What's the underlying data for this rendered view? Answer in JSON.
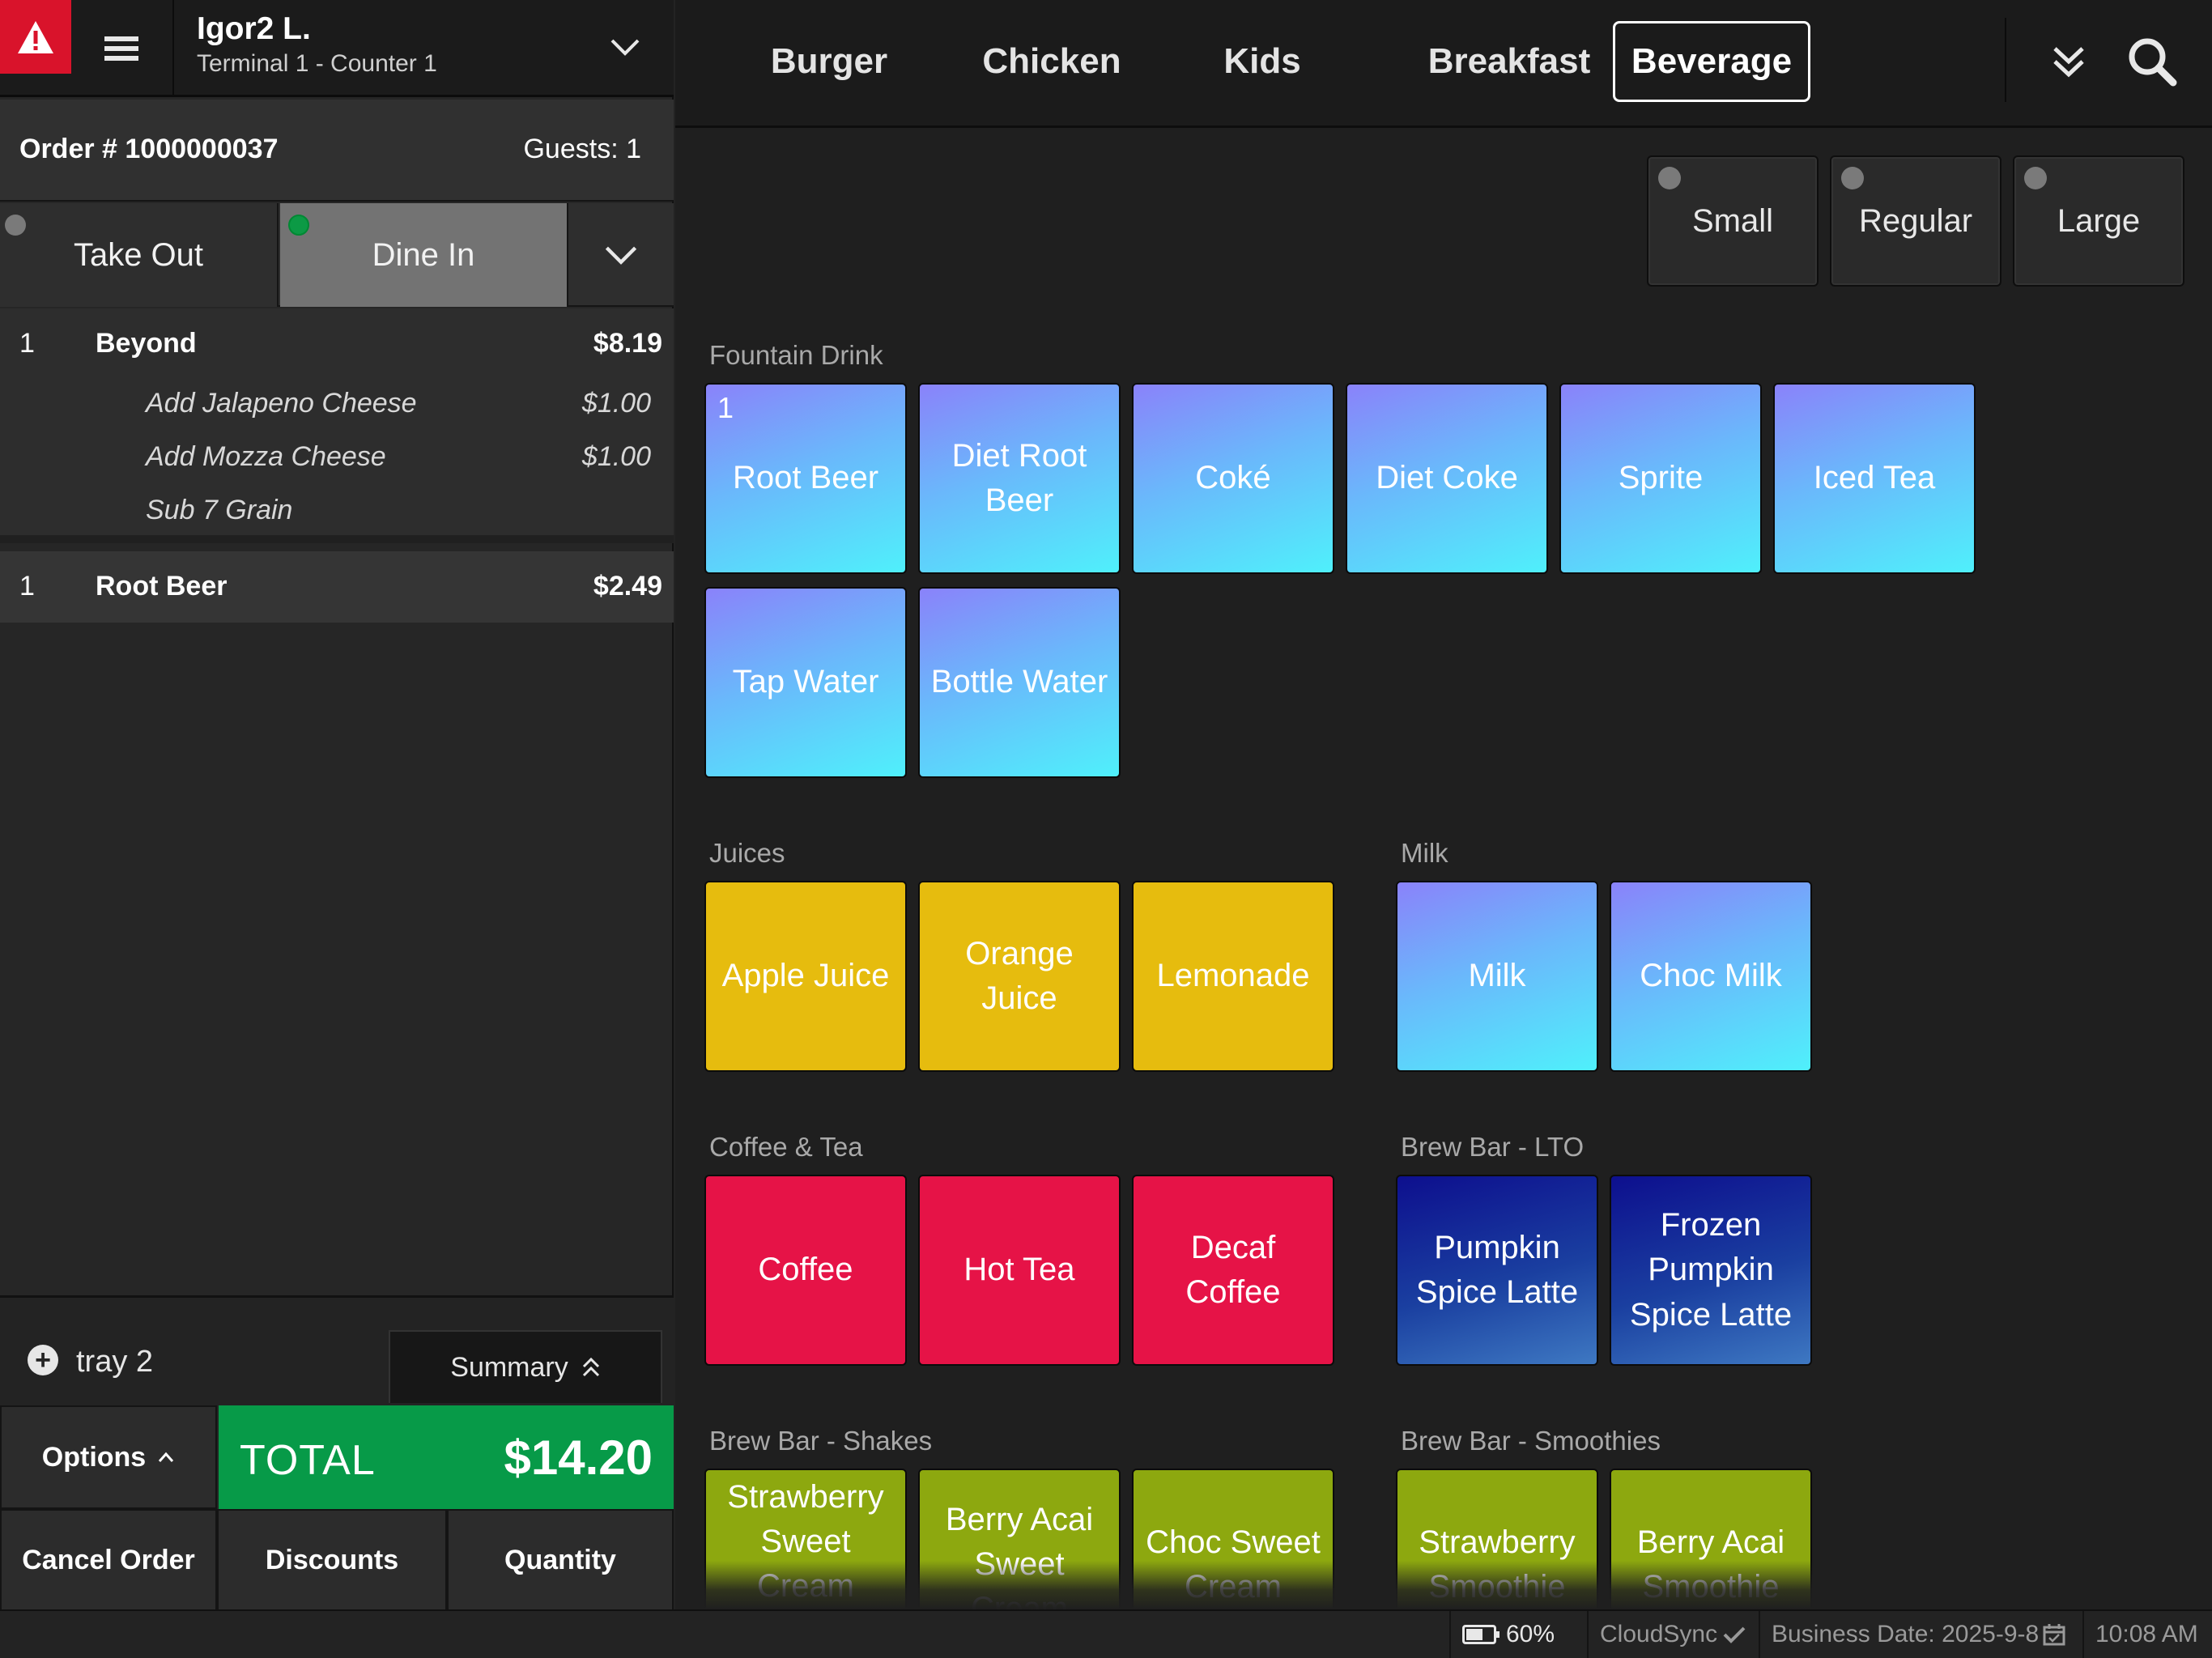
{
  "header": {
    "user_name": "Igor2 L.",
    "terminal": "Terminal 1 - Counter 1"
  },
  "order": {
    "number_label": "Order # 1000000037",
    "guests_label": "Guests: 1",
    "order_types": [
      "Take Out",
      "Dine In"
    ],
    "selected_type": "Dine In",
    "items": [
      {
        "qty": "1",
        "name": "Beyond",
        "price": "$8.19",
        "modifiers": [
          {
            "name": "Add Jalapeno Cheese",
            "price": "$1.00"
          },
          {
            "name": "Add Mozza Cheese",
            "price": "$1.00"
          },
          {
            "name": "Sub 7 Grain",
            "price": ""
          }
        ]
      },
      {
        "qty": "1",
        "name": "Root Beer",
        "price": "$2.49",
        "modifiers": []
      }
    ],
    "tray_label": "tray 2",
    "summary_label": "Summary",
    "options_label": "Options",
    "total_label": "TOTAL",
    "total_value": "$14.20",
    "cancel_label": "Cancel Order",
    "discounts_label": "Discounts",
    "quantity_label": "Quantity"
  },
  "nav": {
    "tabs": [
      "Burger",
      "Chicken",
      "Kids",
      "Breakfast",
      "Beverage"
    ],
    "active_tab": "Beverage"
  },
  "sizes": [
    "Small",
    "Regular",
    "Large"
  ],
  "menu": {
    "fountain": {
      "label": "Fountain Drink",
      "items": [
        "Root Beer",
        "Diet Root Beer",
        "Coké",
        "Diet Coke",
        "Sprite",
        "Iced Tea",
        "Tap Water",
        "Bottle Water"
      ],
      "root_beer_count": "1"
    },
    "juices": {
      "label": "Juices",
      "items": [
        "Apple Juice",
        "Orange Juice",
        "Lemonade"
      ]
    },
    "milk": {
      "label": "Milk",
      "items": [
        "Milk",
        "Choc Milk"
      ]
    },
    "coffee_tea": {
      "label": "Coffee & Tea",
      "items": [
        "Coffee",
        "Hot Tea",
        "Decaf Coffee"
      ]
    },
    "brew_lto": {
      "label": "Brew Bar - LTO",
      "items": [
        "Pumpkin Spice Latte",
        "Frozen Pumpkin Spice Latte"
      ]
    },
    "brew_shakes": {
      "label": "Brew Bar - Shakes",
      "items": [
        "Strawberry Sweet Cream",
        "Berry Acai Sweet Cream",
        "Choc Sweet Cream"
      ]
    },
    "brew_smoothies": {
      "label": "Brew Bar - Smoothies",
      "items": [
        "Strawberry Smoothie",
        "Berry Acai Smoothie"
      ]
    }
  },
  "tile_colors": {
    "fountain": "#6ab8fb",
    "juices": "#e6bc0e",
    "milk": "#6ab8fb",
    "coffee_tea": "#e61347",
    "brew_lto": "#1a3fa0",
    "shakes_smoothies": "#8da80f"
  },
  "accent_colors": {
    "alert": "#d9132b",
    "total": "#079a48",
    "selected_dot": "#0c9a45"
  },
  "status": {
    "battery": "60%",
    "sync": "CloudSync",
    "business_date": "Business Date: 2025-9-8",
    "time": "10:08 AM"
  },
  "icons": [
    "warning-icon",
    "hamburger-menu-icon",
    "chevron-down-icon",
    "double-chevron-down-icon",
    "search-icon",
    "plus-circle-icon",
    "chevron-up-icon",
    "double-chevron-up-icon",
    "battery-icon",
    "checkmark-icon",
    "calendar-icon"
  ]
}
